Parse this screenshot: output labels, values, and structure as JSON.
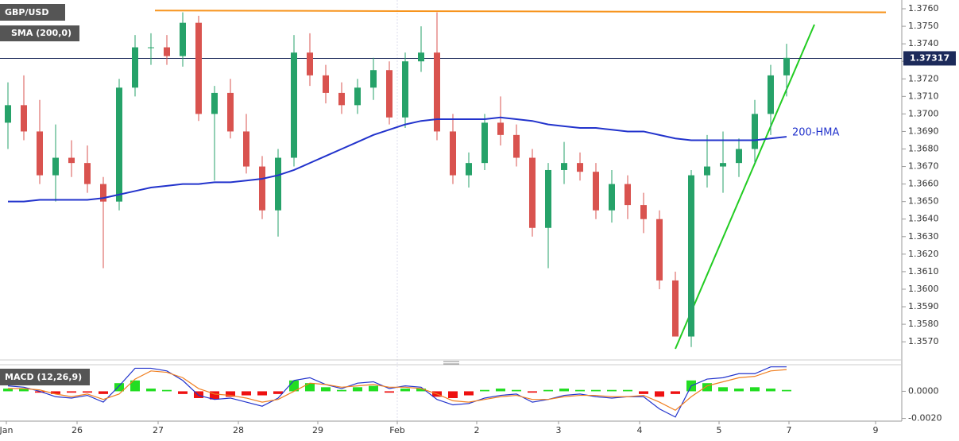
{
  "chart_data": [
    {
      "type": "candlestick",
      "title": "GBP/USD",
      "indicator_label": "SMA (200,0)",
      "x_axis_labels": [
        "Jan",
        "26",
        "27",
        "28",
        "29",
        "Feb",
        "2",
        "3",
        "4",
        "5",
        "7",
        "9"
      ],
      "ylim": [
        1.3561,
        1.3765
      ],
      "yticks": [
        {
          "value": 1.357,
          "label": "1.3570"
        },
        {
          "value": 1.358,
          "label": "1.3580"
        },
        {
          "value": 1.359,
          "label": "1.3590"
        },
        {
          "value": 1.36,
          "label": "1.3600"
        },
        {
          "value": 1.361,
          "label": "1.3610"
        },
        {
          "value": 1.362,
          "label": "1.3620"
        },
        {
          "value": 1.363,
          "label": "1.3630"
        },
        {
          "value": 1.364,
          "label": "1.3640"
        },
        {
          "value": 1.365,
          "label": "1.3650"
        },
        {
          "value": 1.366,
          "label": "1.3660"
        },
        {
          "value": 1.367,
          "label": "1.3670"
        },
        {
          "value": 1.368,
          "label": "1.3680"
        },
        {
          "value": 1.369,
          "label": "1.3690"
        },
        {
          "value": 1.37,
          "label": "1.3700"
        },
        {
          "value": 1.371,
          "label": "1.3710"
        },
        {
          "value": 1.372,
          "label": "1.3720"
        },
        {
          "value": 1.373,
          "label": "1.3730"
        },
        {
          "value": 1.374,
          "label": "1.3740"
        },
        {
          "value": 1.375,
          "label": "1.3750"
        },
        {
          "value": 1.376,
          "label": "1.3760"
        }
      ],
      "up_color": "#26a269",
      "down_color": "#d9534f",
      "open": [
        1.3695,
        1.3705,
        1.369,
        1.3665,
        1.3675,
        1.3672,
        1.366,
        1.365,
        1.3715,
        1.3738,
        1.3738,
        1.3733,
        1.3752,
        1.37,
        1.3712,
        1.369,
        1.367,
        1.3645,
        1.3675,
        1.3735,
        1.3722,
        1.3712,
        1.3705,
        1.3715,
        1.3725,
        1.3698,
        1.373,
        1.3735,
        1.369,
        1.3665,
        1.3672,
        1.3695,
        1.3688,
        1.3675,
        1.3635,
        1.3668,
        1.3672,
        1.3667,
        1.3645,
        1.366,
        1.3648,
        1.364,
        1.3605,
        1.3573,
        1.3665,
        1.367,
        1.3672,
        1.368,
        1.37,
        1.3722
      ],
      "high": [
        1.3718,
        1.3722,
        1.3708,
        1.3694,
        1.3685,
        1.3682,
        1.3664,
        1.372,
        1.3745,
        1.3746,
        1.3745,
        1.3758,
        1.3756,
        1.3716,
        1.372,
        1.37,
        1.3676,
        1.368,
        1.3745,
        1.3746,
        1.3728,
        1.3718,
        1.372,
        1.3732,
        1.373,
        1.3735,
        1.375,
        1.3758,
        1.37,
        1.3678,
        1.37,
        1.371,
        1.3694,
        1.368,
        1.3672,
        1.3684,
        1.3678,
        1.3672,
        1.3668,
        1.3665,
        1.3655,
        1.3645,
        1.361,
        1.3668,
        1.3688,
        1.369,
        1.3686,
        1.3708,
        1.3728,
        1.374
      ],
      "low": [
        1.368,
        1.3685,
        1.366,
        1.365,
        1.3664,
        1.3655,
        1.3612,
        1.3645,
        1.371,
        1.3728,
        1.3728,
        1.3727,
        1.3696,
        1.3662,
        1.3686,
        1.3666,
        1.364,
        1.363,
        1.367,
        1.3716,
        1.3706,
        1.37,
        1.37,
        1.3708,
        1.3694,
        1.3692,
        1.3724,
        1.3685,
        1.366,
        1.3658,
        1.3668,
        1.3682,
        1.367,
        1.363,
        1.3612,
        1.366,
        1.3662,
        1.364,
        1.3638,
        1.364,
        1.3632,
        1.36,
        1.3575,
        1.3567,
        1.3658,
        1.3655,
        1.3664,
        1.3672,
        1.3688,
        1.371
      ],
      "close": [
        1.3705,
        1.369,
        1.3665,
        1.3675,
        1.3672,
        1.366,
        1.365,
        1.3715,
        1.3738,
        1.3738,
        1.3733,
        1.3752,
        1.37,
        1.3712,
        1.369,
        1.367,
        1.3645,
        1.3675,
        1.3735,
        1.3722,
        1.3712,
        1.3705,
        1.3715,
        1.3725,
        1.3698,
        1.373,
        1.3735,
        1.369,
        1.3665,
        1.3672,
        1.3695,
        1.3688,
        1.3675,
        1.3635,
        1.3668,
        1.3672,
        1.3667,
        1.3645,
        1.366,
        1.3648,
        1.364,
        1.3605,
        1.3573,
        1.3665,
        1.367,
        1.3672,
        1.368,
        1.37,
        1.3722,
        1.3732
      ],
      "series": [
        {
          "name": "200-HMA",
          "color": "#2233cc",
          "values": [
            1.365,
            1.365,
            1.3651,
            1.3651,
            1.3651,
            1.3651,
            1.3652,
            1.3654,
            1.3656,
            1.3658,
            1.3659,
            1.366,
            1.366,
            1.3661,
            1.3661,
            1.3662,
            1.3663,
            1.3665,
            1.3668,
            1.3672,
            1.3676,
            1.368,
            1.3684,
            1.3688,
            1.3691,
            1.3694,
            1.3696,
            1.3697,
            1.3697,
            1.3697,
            1.3697,
            1.3698,
            1.3697,
            1.3696,
            1.3694,
            1.3693,
            1.3692,
            1.3692,
            1.3691,
            1.369,
            1.369,
            1.3688,
            1.3686,
            1.3685,
            1.3685,
            1.3685,
            1.3685,
            1.3685,
            1.3686,
            1.3687
          ]
        }
      ],
      "trend_lines": [
        {
          "color": "#f7941d",
          "values": [
            1.3759,
            1.3758
          ]
        },
        {
          "color": "#22cc22",
          "values": [
            1.3566,
            1.3751
          ]
        }
      ],
      "last_price": 1.37317,
      "last_price_color": "#1c2a5a"
    },
    {
      "type": "macd",
      "title": "MACD (12,26,9)",
      "ylim": [
        -0.0022,
        0.0019
      ],
      "yticks": [
        {
          "value": 0,
          "label": "0.0000"
        },
        {
          "value": -0.002,
          "label": "-0.0020"
        }
      ],
      "histogram": {
        "up_color": "#22dd22",
        "down_color": "#ee1111",
        "values": [
          0.0002,
          0.0002,
          -0.0001,
          -0.0002,
          -0.0001,
          -0.0001,
          -0.0002,
          0.0006,
          0.0008,
          0.0002,
          0.0001,
          -0.0002,
          -0.0005,
          -0.0006,
          -0.0004,
          -0.0003,
          -0.0003,
          -0.0002,
          0.0008,
          0.0006,
          0.0003,
          0.0001,
          0.0003,
          0.0004,
          -0.0001,
          0.0002,
          0.0002,
          -0.0004,
          -0.0005,
          -0.0003,
          0.0001,
          0.0002,
          0.0001,
          -0.0001,
          0.0001,
          0.0002,
          0.0001,
          0.0001,
          0.0001,
          0.0001,
          -0.0002,
          -0.0004,
          -0.0002,
          0.0008,
          0.0006,
          0.0003,
          0.0002,
          0.0003,
          0.0002,
          0.0001
        ]
      },
      "series": [
        {
          "color": "#2233cc",
          "values": [
            0.0004,
            0.0003,
            0.0,
            -0.0004,
            -0.0005,
            -0.0003,
            -0.0008,
            0.0004,
            0.0017,
            0.0017,
            0.0015,
            0.0008,
            -0.0003,
            -0.0006,
            -0.0005,
            -0.0008,
            -0.0011,
            -0.0005,
            0.0008,
            0.001,
            0.0005,
            0.0002,
            0.0006,
            0.0007,
            0.0002,
            0.0004,
            0.0003,
            -0.0006,
            -0.001,
            -0.0009,
            -0.0005,
            -0.0003,
            -0.0002,
            -0.0008,
            -0.0006,
            -0.0003,
            -0.0002,
            -0.0004,
            -0.0005,
            -0.0004,
            -0.0004,
            -0.0013,
            -0.0019,
            0.0004,
            0.0009,
            0.001,
            0.0013,
            0.0013,
            0.0018,
            0.0018
          ]
        },
        {
          "color": "#f07f20",
          "values": [
            0.0002,
            0.0002,
            0.0001,
            -0.0002,
            -0.0004,
            -0.0002,
            -0.0006,
            -0.0002,
            0.0009,
            0.0015,
            0.0014,
            0.001,
            0.0002,
            -0.0002,
            -0.0003,
            -0.0005,
            -0.0008,
            -0.0006,
            0.0,
            0.0006,
            0.0005,
            0.0003,
            0.0004,
            0.0005,
            0.0003,
            0.0003,
            0.0002,
            -0.0002,
            -0.0007,
            -0.0008,
            -0.0006,
            -0.0004,
            -0.0003,
            -0.0006,
            -0.0006,
            -0.0004,
            -0.0003,
            -0.0003,
            -0.0004,
            -0.0004,
            -0.0003,
            -0.0008,
            -0.0014,
            -0.0004,
            0.0004,
            0.0007,
            0.001,
            0.0011,
            0.0015,
            0.0016
          ]
        }
      ]
    }
  ]
}
